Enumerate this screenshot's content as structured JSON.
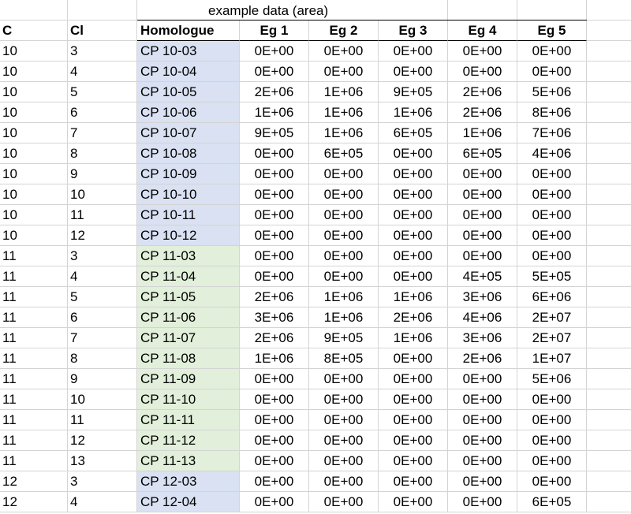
{
  "title": "example data (area)",
  "headers": [
    "C",
    "Cl",
    "Homologue",
    "Eg 1",
    "Eg 2",
    "Eg 3",
    "Eg 4",
    "Eg 5"
  ],
  "rows": [
    {
      "c": "10",
      "cl": "3",
      "hom": "CP 10-03",
      "v": [
        "0E+00",
        "0E+00",
        "0E+00",
        "0E+00",
        "0E+00"
      ],
      "band": "blue"
    },
    {
      "c": "10",
      "cl": "4",
      "hom": "CP 10-04",
      "v": [
        "0E+00",
        "0E+00",
        "0E+00",
        "0E+00",
        "0E+00"
      ],
      "band": "blue"
    },
    {
      "c": "10",
      "cl": "5",
      "hom": "CP 10-05",
      "v": [
        "2E+06",
        "1E+06",
        "9E+05",
        "2E+06",
        "5E+06"
      ],
      "band": "blue"
    },
    {
      "c": "10",
      "cl": "6",
      "hom": "CP 10-06",
      "v": [
        "1E+06",
        "1E+06",
        "1E+06",
        "2E+06",
        "8E+06"
      ],
      "band": "blue"
    },
    {
      "c": "10",
      "cl": "7",
      "hom": "CP 10-07",
      "v": [
        "9E+05",
        "1E+06",
        "6E+05",
        "1E+06",
        "7E+06"
      ],
      "band": "blue"
    },
    {
      "c": "10",
      "cl": "8",
      "hom": "CP 10-08",
      "v": [
        "0E+00",
        "6E+05",
        "0E+00",
        "6E+05",
        "4E+06"
      ],
      "band": "blue"
    },
    {
      "c": "10",
      "cl": "9",
      "hom": "CP 10-09",
      "v": [
        "0E+00",
        "0E+00",
        "0E+00",
        "0E+00",
        "0E+00"
      ],
      "band": "blue"
    },
    {
      "c": "10",
      "cl": "10",
      "hom": "CP 10-10",
      "v": [
        "0E+00",
        "0E+00",
        "0E+00",
        "0E+00",
        "0E+00"
      ],
      "band": "blue"
    },
    {
      "c": "10",
      "cl": "11",
      "hom": "CP 10-11",
      "v": [
        "0E+00",
        "0E+00",
        "0E+00",
        "0E+00",
        "0E+00"
      ],
      "band": "blue"
    },
    {
      "c": "10",
      "cl": "12",
      "hom": "CP 10-12",
      "v": [
        "0E+00",
        "0E+00",
        "0E+00",
        "0E+00",
        "0E+00"
      ],
      "band": "blue"
    },
    {
      "c": "11",
      "cl": "3",
      "hom": "CP 11-03",
      "v": [
        "0E+00",
        "0E+00",
        "0E+00",
        "0E+00",
        "0E+00"
      ],
      "band": "green"
    },
    {
      "c": "11",
      "cl": "4",
      "hom": "CP 11-04",
      "v": [
        "0E+00",
        "0E+00",
        "0E+00",
        "4E+05",
        "5E+05"
      ],
      "band": "green"
    },
    {
      "c": "11",
      "cl": "5",
      "hom": "CP 11-05",
      "v": [
        "2E+06",
        "1E+06",
        "1E+06",
        "3E+06",
        "6E+06"
      ],
      "band": "green"
    },
    {
      "c": "11",
      "cl": "6",
      "hom": "CP 11-06",
      "v": [
        "3E+06",
        "1E+06",
        "2E+06",
        "4E+06",
        "2E+07"
      ],
      "band": "green"
    },
    {
      "c": "11",
      "cl": "7",
      "hom": "CP 11-07",
      "v": [
        "2E+06",
        "9E+05",
        "1E+06",
        "3E+06",
        "2E+07"
      ],
      "band": "green"
    },
    {
      "c": "11",
      "cl": "8",
      "hom": "CP 11-08",
      "v": [
        "1E+06",
        "8E+05",
        "0E+00",
        "2E+06",
        "1E+07"
      ],
      "band": "green"
    },
    {
      "c": "11",
      "cl": "9",
      "hom": "CP 11-09",
      "v": [
        "0E+00",
        "0E+00",
        "0E+00",
        "0E+00",
        "5E+06"
      ],
      "band": "green"
    },
    {
      "c": "11",
      "cl": "10",
      "hom": "CP 11-10",
      "v": [
        "0E+00",
        "0E+00",
        "0E+00",
        "0E+00",
        "0E+00"
      ],
      "band": "green"
    },
    {
      "c": "11",
      "cl": "11",
      "hom": "CP 11-11",
      "v": [
        "0E+00",
        "0E+00",
        "0E+00",
        "0E+00",
        "0E+00"
      ],
      "band": "green"
    },
    {
      "c": "11",
      "cl": "12",
      "hom": "CP 11-12",
      "v": [
        "0E+00",
        "0E+00",
        "0E+00",
        "0E+00",
        "0E+00"
      ],
      "band": "green"
    },
    {
      "c": "11",
      "cl": "13",
      "hom": "CP 11-13",
      "v": [
        "0E+00",
        "0E+00",
        "0E+00",
        "0E+00",
        "0E+00"
      ],
      "band": "green"
    },
    {
      "c": "12",
      "cl": "3",
      "hom": "CP 12-03",
      "v": [
        "0E+00",
        "0E+00",
        "0E+00",
        "0E+00",
        "0E+00"
      ],
      "band": "blue"
    },
    {
      "c": "12",
      "cl": "4",
      "hom": "CP 12-04",
      "v": [
        "0E+00",
        "0E+00",
        "0E+00",
        "0E+00",
        "6E+05"
      ],
      "band": "blue"
    }
  ],
  "colors": {
    "blue": "#d9e1f2",
    "green": "#e2efda",
    "grid": "#d4d4d4"
  }
}
